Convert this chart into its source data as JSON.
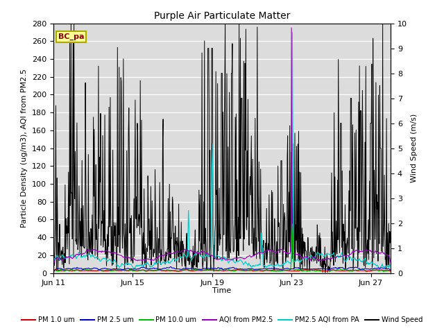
{
  "title": "Purple Air Particulate Matter",
  "xlabel": "Time",
  "ylabel_left": "Particle Density (ug/m3), AQI from PM2.5",
  "ylabel_right": "Wind Speed (m/s)",
  "ylim_left": [
    0,
    280
  ],
  "ylim_right": [
    0,
    10.0
  ],
  "yticks_left": [
    0,
    20,
    40,
    60,
    80,
    100,
    120,
    140,
    160,
    180,
    200,
    220,
    240,
    260,
    280
  ],
  "yticks_right": [
    0.0,
    1.0,
    2.0,
    3.0,
    4.0,
    5.0,
    6.0,
    7.0,
    8.0,
    9.0,
    10.0
  ],
  "xlim": [
    0,
    17
  ],
  "xtick_positions": [
    0,
    4,
    8,
    12,
    16
  ],
  "xtick_labels": [
    "Jun 11",
    "Jun 15",
    "Jun 19",
    "Jun 23",
    "Jun 27"
  ],
  "legend_entries": [
    {
      "label": "PM 1.0 um",
      "color": "#cc0000",
      "lw": 1.5
    },
    {
      "label": "PM 2.5 um",
      "color": "#0000cc",
      "lw": 1.5
    },
    {
      "label": "PM 10.0 um",
      "color": "#00bb00",
      "lw": 1.5
    },
    {
      "label": "AQI from PM2.5",
      "color": "#9900bb",
      "lw": 1.5
    },
    {
      "label": "PM2.5 AQI from PA",
      "color": "#00cccc",
      "lw": 1.5
    },
    {
      "label": "Wind Speed",
      "color": "#000000",
      "lw": 1.5
    }
  ],
  "annotation_text": "BC_pa",
  "annotation_color": "#880000",
  "annotation_bg": "#ffff99",
  "annotation_border": "#aaaa00",
  "plot_bg": "#dcdcdc",
  "n_points": 800
}
